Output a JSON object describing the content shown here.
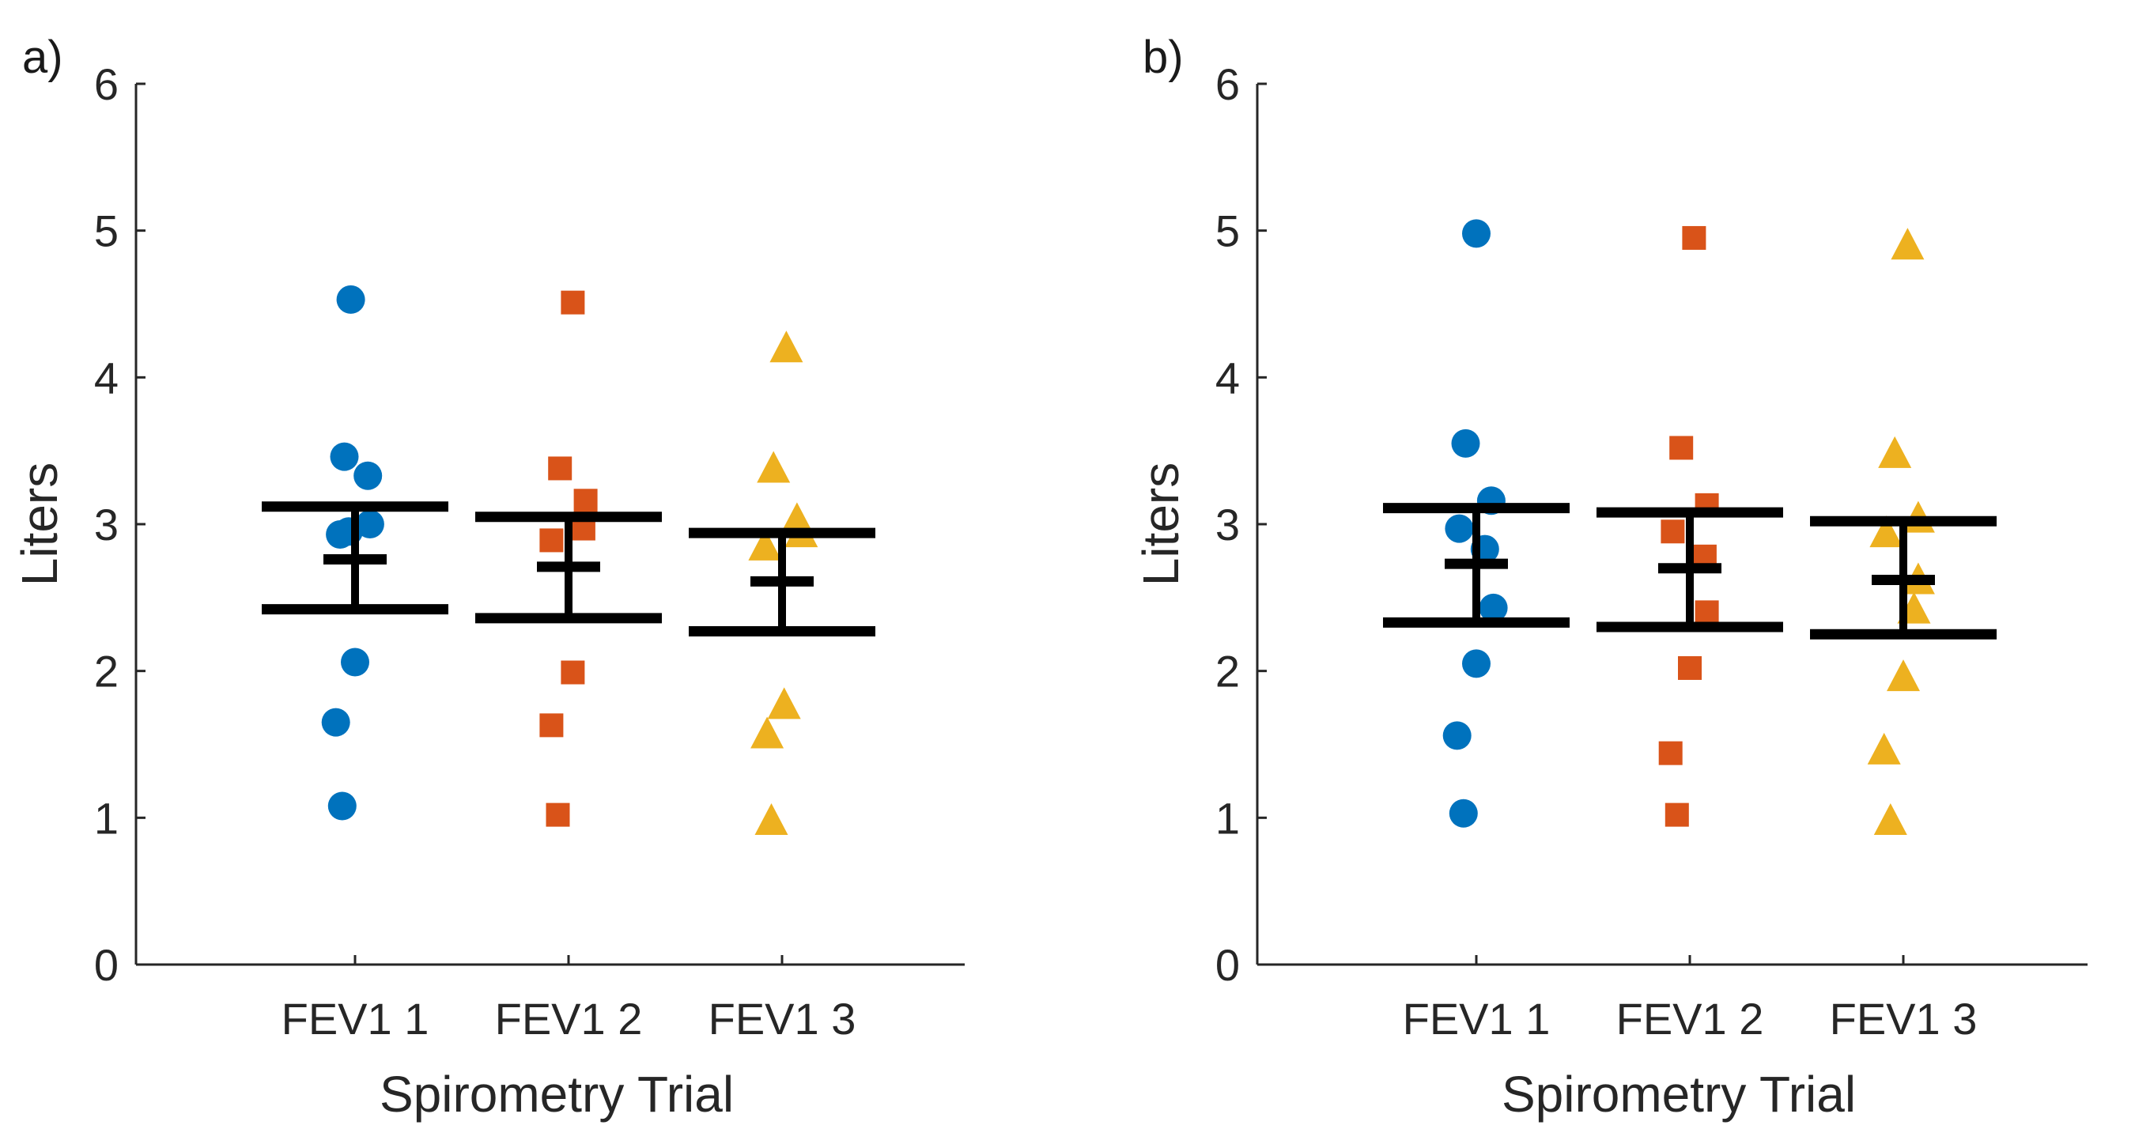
{
  "chart_data": [
    {
      "type": "scatter",
      "panel_label": "a)",
      "xlabel": "Spirometry Trial",
      "ylabel": "Liters",
      "ylim": [
        0,
        6
      ],
      "yticks": [
        0,
        1,
        2,
        3,
        4,
        5,
        6
      ],
      "categories": [
        "FEV1 1",
        "FEV1 2",
        "FEV1 3"
      ],
      "series": [
        {
          "name": "FEV1 1",
          "marker": "circle",
          "color": "#0072BD",
          "points": [
            [
              -0.02,
              4.53
            ],
            [
              -0.05,
              3.46
            ],
            [
              0.06,
              3.33
            ],
            [
              0.07,
              3.0
            ],
            [
              -0.03,
              2.95
            ],
            [
              -0.07,
              2.93
            ],
            [
              0.0,
              2.06
            ],
            [
              -0.09,
              1.65
            ],
            [
              -0.06,
              1.08
            ]
          ]
        },
        {
          "name": "FEV1 2",
          "marker": "square",
          "color": "#D95319",
          "points": [
            [
              0.02,
              4.51
            ],
            [
              -0.04,
              3.38
            ],
            [
              0.08,
              3.16
            ],
            [
              0.07,
              2.97
            ],
            [
              -0.08,
              2.89
            ],
            [
              0.02,
              1.99
            ],
            [
              -0.08,
              1.63
            ],
            [
              -0.05,
              1.02
            ]
          ]
        },
        {
          "name": "FEV1 3",
          "marker": "triangle",
          "color": "#EDB120",
          "points": [
            [
              0.02,
              4.2
            ],
            [
              -0.04,
              3.38
            ],
            [
              0.07,
              3.03
            ],
            [
              0.09,
              2.94
            ],
            [
              -0.08,
              2.85
            ],
            [
              0.01,
              1.77
            ],
            [
              -0.07,
              1.57
            ],
            [
              -0.05,
              0.98
            ]
          ]
        }
      ],
      "error_bars": [
        {
          "category": "FEV1 1",
          "mean": 2.76,
          "lower": 2.42,
          "upper": 3.12
        },
        {
          "category": "FEV1 2",
          "mean": 2.71,
          "lower": 2.36,
          "upper": 3.05
        },
        {
          "category": "FEV1 3",
          "mean": 2.61,
          "lower": 2.27,
          "upper": 2.94
        }
      ]
    },
    {
      "type": "scatter",
      "panel_label": "b)",
      "xlabel": "Spirometry Trial",
      "ylabel": "Liters",
      "ylim": [
        0,
        6
      ],
      "yticks": [
        0,
        1,
        2,
        3,
        4,
        5,
        6
      ],
      "categories": [
        "FEV1 1",
        "FEV1 2",
        "FEV1 3"
      ],
      "series": [
        {
          "name": "FEV1 1",
          "marker": "circle",
          "color": "#0072BD",
          "points": [
            [
              0.0,
              4.98
            ],
            [
              -0.05,
              3.55
            ],
            [
              0.07,
              3.16
            ],
            [
              -0.08,
              2.97
            ],
            [
              0.04,
              2.83
            ],
            [
              0.08,
              2.43
            ],
            [
              0.0,
              2.05
            ],
            [
              -0.09,
              1.56
            ],
            [
              -0.06,
              1.03
            ]
          ]
        },
        {
          "name": "FEV1 2",
          "marker": "square",
          "color": "#D95319",
          "points": [
            [
              0.02,
              4.95
            ],
            [
              -0.04,
              3.52
            ],
            [
              0.08,
              3.13
            ],
            [
              -0.08,
              2.95
            ],
            [
              0.07,
              2.78
            ],
            [
              0.08,
              2.4
            ],
            [
              0.0,
              2.02
            ],
            [
              -0.09,
              1.44
            ],
            [
              -0.06,
              1.02
            ]
          ]
        },
        {
          "name": "FEV1 3",
          "marker": "triangle",
          "color": "#EDB120",
          "points": [
            [
              0.02,
              4.9
            ],
            [
              -0.04,
              3.48
            ],
            [
              0.07,
              3.04
            ],
            [
              -0.08,
              2.94
            ],
            [
              0.07,
              2.62
            ],
            [
              0.05,
              2.42
            ],
            [
              0.0,
              1.96
            ],
            [
              -0.09,
              1.46
            ],
            [
              -0.06,
              0.98
            ]
          ]
        }
      ],
      "error_bars": [
        {
          "category": "FEV1 1",
          "mean": 2.73,
          "lower": 2.33,
          "upper": 3.11
        },
        {
          "category": "FEV1 2",
          "mean": 2.7,
          "lower": 2.3,
          "upper": 3.08
        },
        {
          "category": "FEV1 3",
          "mean": 2.62,
          "lower": 2.25,
          "upper": 3.02
        }
      ]
    }
  ]
}
